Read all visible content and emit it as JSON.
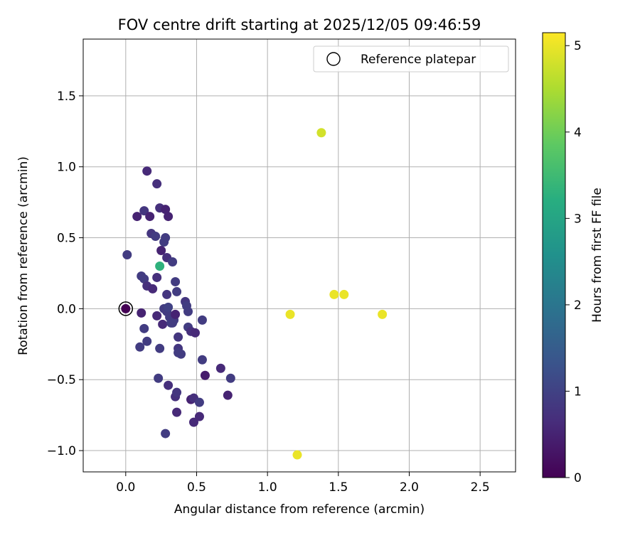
{
  "chart_data": {
    "type": "scatter",
    "title": "FOV centre drift starting at 2025/12/05 09:46:59",
    "xlabel": "Angular distance from reference (arcmin)",
    "ylabel": "Rotation from reference (arcmin)",
    "xlim": [
      -0.3,
      2.75
    ],
    "ylim": [
      -1.15,
      1.9
    ],
    "xticks": [
      "0.0",
      "0.5",
      "1.0",
      "1.5",
      "2.0",
      "2.5"
    ],
    "xtick_values": [
      0.0,
      0.5,
      1.0,
      1.5,
      2.0,
      2.5
    ],
    "yticks": [
      "−1.0",
      "−0.5",
      "0.0",
      "0.5",
      "1.0",
      "1.5"
    ],
    "ytick_values": [
      -1.0,
      -0.5,
      0.0,
      0.5,
      1.0,
      1.5
    ],
    "grid": true,
    "legend": {
      "position": "top-right",
      "label": "Reference platepar"
    },
    "reference_point": {
      "x": 0.0,
      "y": 0.0
    },
    "colorbar": {
      "label": "Hours from first FF file",
      "range": [
        0,
        5.15
      ],
      "ticks": [
        "0",
        "1",
        "2",
        "3",
        "4",
        "5"
      ],
      "tick_values": [
        0,
        1,
        2,
        3,
        4,
        5
      ],
      "colormap": "viridis"
    },
    "points": [
      {
        "x": 0.0,
        "y": 0.0,
        "h": 0.0
      },
      {
        "x": 0.01,
        "y": 0.38,
        "h": 0.9
      },
      {
        "x": 0.08,
        "y": 0.65,
        "h": 0.5
      },
      {
        "x": 0.1,
        "y": -0.27,
        "h": 0.9
      },
      {
        "x": 0.11,
        "y": -0.03,
        "h": 0.5
      },
      {
        "x": 0.11,
        "y": 0.23,
        "h": 0.9
      },
      {
        "x": 0.13,
        "y": 0.69,
        "h": 0.8
      },
      {
        "x": 0.13,
        "y": 0.21,
        "h": 0.9
      },
      {
        "x": 0.13,
        "y": -0.14,
        "h": 0.9
      },
      {
        "x": 0.15,
        "y": 0.97,
        "h": 0.6
      },
      {
        "x": 0.15,
        "y": 0.16,
        "h": 0.7
      },
      {
        "x": 0.15,
        "y": -0.23,
        "h": 0.9
      },
      {
        "x": 0.17,
        "y": 0.65,
        "h": 0.5
      },
      {
        "x": 0.18,
        "y": 0.53,
        "h": 0.8
      },
      {
        "x": 0.19,
        "y": 0.14,
        "h": 0.6
      },
      {
        "x": 0.21,
        "y": 0.51,
        "h": 0.9
      },
      {
        "x": 0.22,
        "y": 0.88,
        "h": 0.7
      },
      {
        "x": 0.22,
        "y": 0.22,
        "h": 0.7
      },
      {
        "x": 0.22,
        "y": -0.05,
        "h": 0.6
      },
      {
        "x": 0.23,
        "y": -0.49,
        "h": 0.9
      },
      {
        "x": 0.24,
        "y": 0.71,
        "h": 0.7
      },
      {
        "x": 0.24,
        "y": 0.3,
        "h": 3.3
      },
      {
        "x": 0.24,
        "y": -0.28,
        "h": 0.9
      },
      {
        "x": 0.25,
        "y": 0.41,
        "h": 0.5
      },
      {
        "x": 0.26,
        "y": -0.11,
        "h": 0.6
      },
      {
        "x": 0.27,
        "y": 0.0,
        "h": 0.9
      },
      {
        "x": 0.27,
        "y": 0.47,
        "h": 0.9
      },
      {
        "x": 0.28,
        "y": 0.7,
        "h": 0.5
      },
      {
        "x": 0.28,
        "y": 0.5,
        "h": 0.9
      },
      {
        "x": 0.28,
        "y": -0.88,
        "h": 0.9
      },
      {
        "x": 0.29,
        "y": 0.36,
        "h": 0.7
      },
      {
        "x": 0.29,
        "y": 0.1,
        "h": 0.8
      },
      {
        "x": 0.29,
        "y": -0.02,
        "h": 0.9
      },
      {
        "x": 0.3,
        "y": 0.01,
        "h": 1.0
      },
      {
        "x": 0.3,
        "y": 0.65,
        "h": 0.5
      },
      {
        "x": 0.3,
        "y": -0.54,
        "h": 0.7
      },
      {
        "x": 0.31,
        "y": -0.06,
        "h": 0.9
      },
      {
        "x": 0.32,
        "y": -0.1,
        "h": 0.9
      },
      {
        "x": 0.33,
        "y": -0.1,
        "h": 0.9
      },
      {
        "x": 0.33,
        "y": 0.33,
        "h": 0.9
      },
      {
        "x": 0.34,
        "y": -0.08,
        "h": 0.9
      },
      {
        "x": 0.35,
        "y": -0.04,
        "h": 0.5
      },
      {
        "x": 0.35,
        "y": 0.19,
        "h": 0.9
      },
      {
        "x": 0.35,
        "y": -0.62,
        "h": 0.7
      },
      {
        "x": 0.36,
        "y": 0.12,
        "h": 0.9
      },
      {
        "x": 0.36,
        "y": -0.59,
        "h": 0.8
      },
      {
        "x": 0.36,
        "y": -0.73,
        "h": 0.6
      },
      {
        "x": 0.37,
        "y": -0.2,
        "h": 0.8
      },
      {
        "x": 0.37,
        "y": -0.28,
        "h": 0.8
      },
      {
        "x": 0.37,
        "y": -0.31,
        "h": 0.9
      },
      {
        "x": 0.39,
        "y": -0.32,
        "h": 0.9
      },
      {
        "x": 0.42,
        "y": 0.05,
        "h": 0.8
      },
      {
        "x": 0.43,
        "y": 0.02,
        "h": 0.9
      },
      {
        "x": 0.44,
        "y": -0.02,
        "h": 0.9
      },
      {
        "x": 0.44,
        "y": -0.13,
        "h": 0.9
      },
      {
        "x": 0.46,
        "y": -0.64,
        "h": 0.5
      },
      {
        "x": 0.46,
        "y": -0.16,
        "h": 0.7
      },
      {
        "x": 0.48,
        "y": -0.8,
        "h": 0.6
      },
      {
        "x": 0.48,
        "y": -0.63,
        "h": 0.7
      },
      {
        "x": 0.49,
        "y": -0.17,
        "h": 0.6
      },
      {
        "x": 0.52,
        "y": -0.66,
        "h": 0.9
      },
      {
        "x": 0.52,
        "y": -0.76,
        "h": 0.6
      },
      {
        "x": 0.54,
        "y": -0.08,
        "h": 0.9
      },
      {
        "x": 0.54,
        "y": -0.36,
        "h": 0.9
      },
      {
        "x": 0.56,
        "y": -0.47,
        "h": 0.4
      },
      {
        "x": 0.67,
        "y": -0.42,
        "h": 0.6
      },
      {
        "x": 0.72,
        "y": -0.61,
        "h": 0.5
      },
      {
        "x": 0.74,
        "y": -0.49,
        "h": 0.9
      },
      {
        "x": 1.16,
        "y": -0.04,
        "h": 5.0
      },
      {
        "x": 1.21,
        "y": -1.03,
        "h": 5.0
      },
      {
        "x": 1.38,
        "y": 1.24,
        "h": 4.8
      },
      {
        "x": 1.47,
        "y": 0.1,
        "h": 5.0
      },
      {
        "x": 1.54,
        "y": 0.1,
        "h": 5.0
      },
      {
        "x": 1.81,
        "y": -0.04,
        "h": 5.0
      }
    ]
  }
}
